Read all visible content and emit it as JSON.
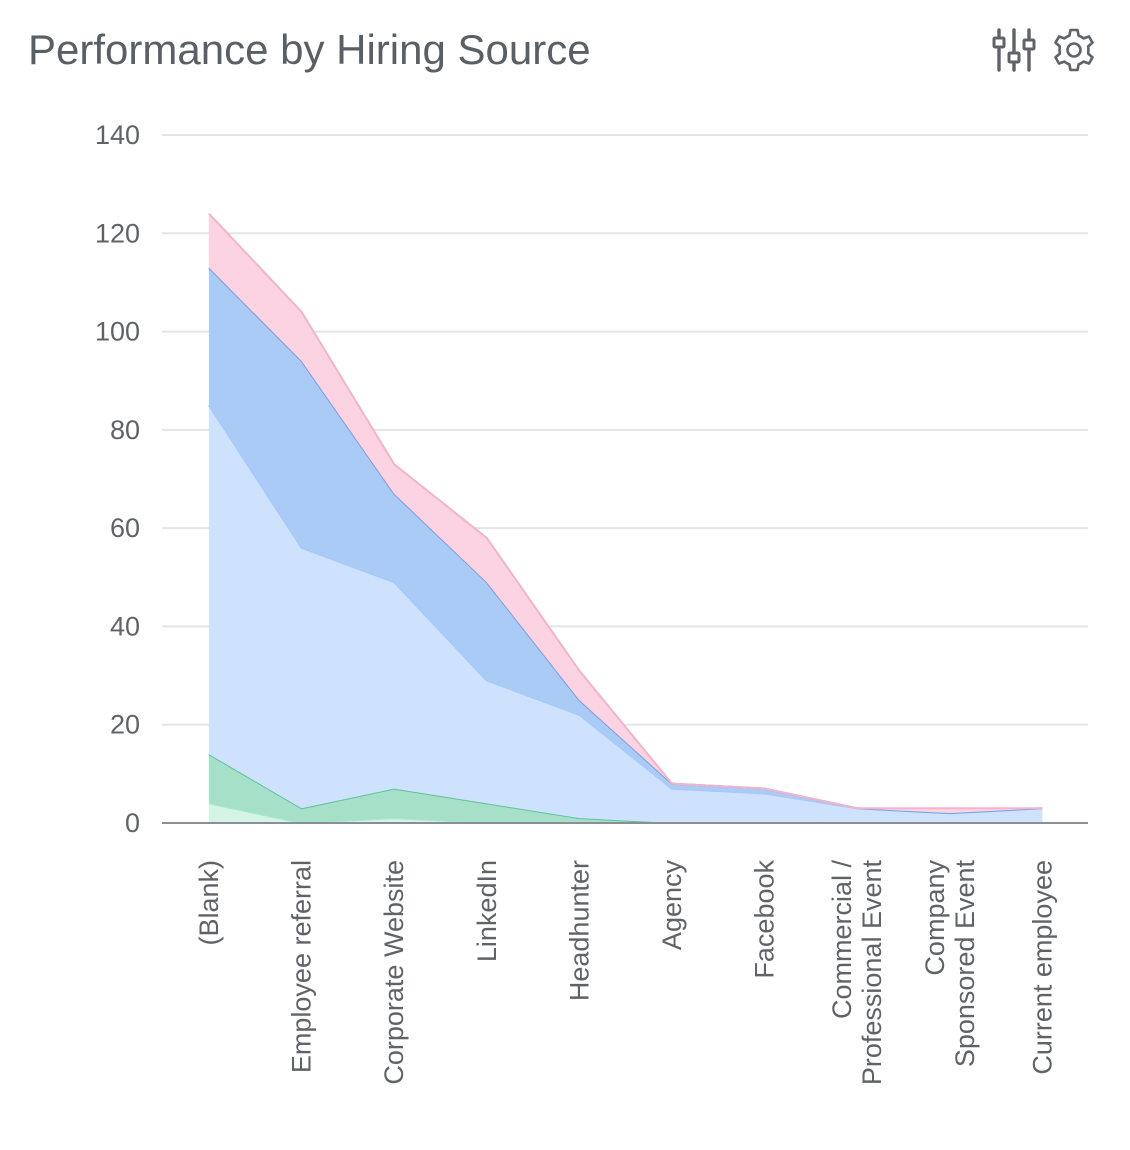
{
  "header": {
    "title": "Performance by Hiring Source",
    "icons": [
      "filter-sliders-icon",
      "gear-icon"
    ]
  },
  "chart_data": {
    "type": "area",
    "stacked": true,
    "categories": [
      "(Blank)",
      "Employee referral",
      "Corporate Website",
      "LinkedIn",
      "Headhunter",
      "Agency",
      "Facebook",
      "Commercial / Professional Event",
      "Company Sponsored Event",
      "Current employee"
    ],
    "category_lines": [
      [
        "(Blank)"
      ],
      [
        "Employee referral"
      ],
      [
        "Corporate Website"
      ],
      [
        "LinkedIn"
      ],
      [
        "Headhunter"
      ],
      [
        "Agency"
      ],
      [
        "Facebook"
      ],
      [
        "Commercial /",
        "Professional Event"
      ],
      [
        "Company",
        "Sponsored Event"
      ],
      [
        "Current employee"
      ]
    ],
    "series": [
      {
        "values": [
          4,
          0,
          1,
          0,
          0,
          0,
          0,
          0,
          0,
          0
        ],
        "color": "#d4f5e6",
        "line": "#a8e8c8"
      },
      {
        "values": [
          10,
          3,
          6,
          4,
          1,
          0,
          0,
          0,
          0,
          0
        ],
        "color": "#a6e0c8",
        "line": "#5fc49a"
      },
      {
        "values": [
          71,
          53,
          42,
          25,
          21,
          7,
          6,
          3,
          2,
          3
        ],
        "color": "#cfe2fd",
        "line": "#a8c8f5"
      },
      {
        "values": [
          28,
          38,
          18,
          20,
          3,
          1,
          1,
          0,
          0,
          0
        ],
        "color": "#a9cbf6",
        "line": "#6fa3ec"
      },
      {
        "values": [
          11,
          10,
          6,
          9,
          6,
          0,
          0,
          0,
          1,
          0
        ],
        "color": "#fbd3e2",
        "line": "#f5b3cb"
      }
    ],
    "ylim": [
      0,
      140
    ],
    "yticks": [
      0,
      20,
      40,
      60,
      80,
      100,
      120,
      140
    ],
    "grid": true,
    "legend": "none",
    "axis_color": "#8a8f96",
    "grid_color": "#e3e5e8"
  }
}
